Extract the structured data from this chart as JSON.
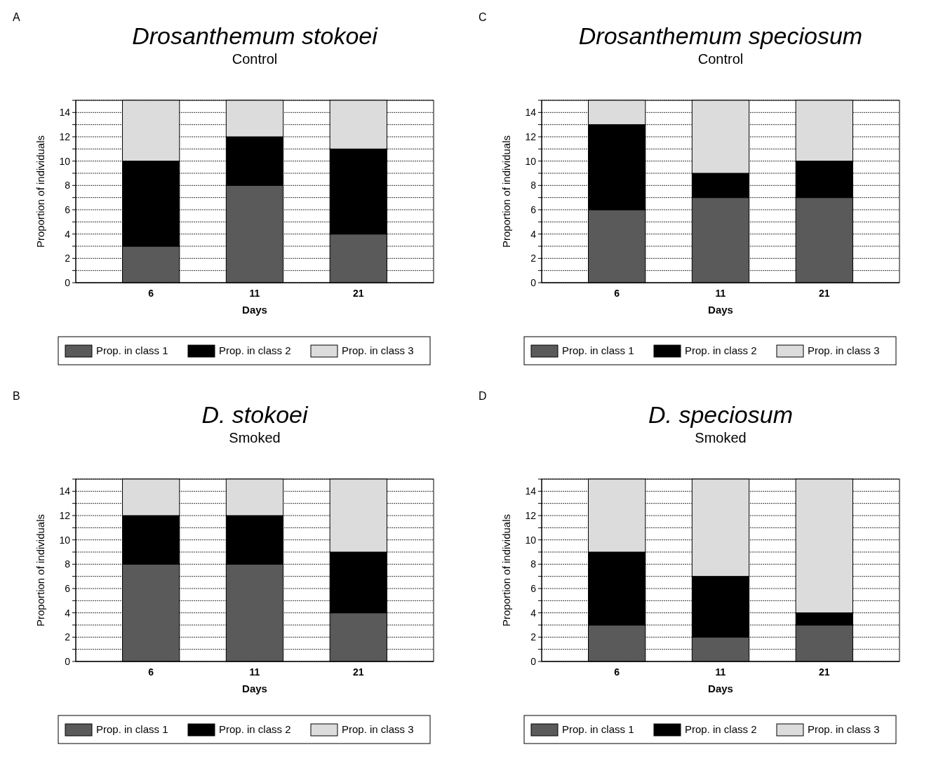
{
  "chart_data": [
    {
      "type": "bar",
      "title": "Drosanthemum stokoei",
      "subtitle": "Control",
      "xlabel": "Days",
      "ylabel": "Proportion of individuals",
      "annotations": [
        "A"
      ],
      "categories": [
        "6",
        "11",
        "21"
      ],
      "stacked": true,
      "ylim": [
        0,
        15
      ],
      "yticks": [
        0,
        {
          "value": 1,
          "label": null
        },
        2,
        {
          "value": 3,
          "label": null
        },
        4,
        {
          "value": 5,
          "label": null
        },
        6,
        {
          "value": 7,
          "label": null
        },
        8,
        {
          "value": 9,
          "label": null
        },
        10,
        {
          "value": 11,
          "label": null
        },
        12,
        {
          "value": 13,
          "label": null
        },
        14,
        {
          "value": 15,
          "label": null
        }
      ],
      "grid": "y",
      "legend": "bottom",
      "series": [
        {
          "name": "Prop. in class 1",
          "color": "#5a5a5a",
          "values": [
            3,
            8,
            4
          ]
        },
        {
          "name": "Prop. in class 2",
          "color": "#000000",
          "values": [
            7,
            4,
            7
          ]
        },
        {
          "name": "Prop. in class 3",
          "color": "#dcdcdc",
          "values": [
            5,
            3,
            4
          ]
        }
      ]
    },
    {
      "type": "bar",
      "title": "Drosanthemum speciosum",
      "subtitle": "Control",
      "xlabel": "Days",
      "ylabel": "Proportion of individuals",
      "annotations": [
        "C"
      ],
      "categories": [
        "6",
        "11",
        "21"
      ],
      "stacked": true,
      "ylim": [
        0,
        15
      ],
      "yticks": [
        0,
        {
          "value": 1,
          "label": null
        },
        2,
        {
          "value": 3,
          "label": null
        },
        4,
        {
          "value": 5,
          "label": null
        },
        6,
        {
          "value": 7,
          "label": null
        },
        8,
        {
          "value": 9,
          "label": null
        },
        10,
        {
          "value": 11,
          "label": null
        },
        12,
        {
          "value": 13,
          "label": null
        },
        14,
        {
          "value": 15,
          "label": null
        }
      ],
      "grid": "y",
      "legend": "bottom",
      "series": [
        {
          "name": "Prop. in class 1",
          "color": "#5a5a5a",
          "values": [
            6,
            7,
            7
          ]
        },
        {
          "name": "Prop. in class 2",
          "color": "#000000",
          "values": [
            7,
            2,
            3
          ]
        },
        {
          "name": "Prop. in class 3",
          "color": "#dcdcdc",
          "values": [
            2,
            6,
            5
          ]
        }
      ]
    },
    {
      "type": "bar",
      "title": "D. stokoei",
      "subtitle": "Smoked",
      "xlabel": "Days",
      "ylabel": "Proportion of individuals",
      "annotations": [
        "B"
      ],
      "categories": [
        "6",
        "11",
        "21"
      ],
      "stacked": true,
      "ylim": [
        0,
        15
      ],
      "yticks": [
        0,
        {
          "value": 1,
          "label": null
        },
        2,
        {
          "value": 3,
          "label": null
        },
        4,
        {
          "value": 5,
          "label": null
        },
        6,
        {
          "value": 7,
          "label": null
        },
        8,
        {
          "value": 9,
          "label": null
        },
        10,
        {
          "value": 11,
          "label": null
        },
        12,
        {
          "value": 13,
          "label": null
        },
        14,
        {
          "value": 15,
          "label": null
        }
      ],
      "grid": "y",
      "legend": "bottom",
      "series": [
        {
          "name": "Prop. in class 1",
          "color": "#5a5a5a",
          "values": [
            8,
            8,
            4
          ]
        },
        {
          "name": "Prop. in class 2",
          "color": "#000000",
          "values": [
            4,
            4,
            5
          ]
        },
        {
          "name": "Prop. in class 3",
          "color": "#dcdcdc",
          "values": [
            3,
            3,
            6
          ]
        }
      ]
    },
    {
      "type": "bar",
      "title": "D. speciosum",
      "subtitle": "Smoked",
      "xlabel": "Days",
      "ylabel": "Proportion of individuals",
      "annotations": [
        "D"
      ],
      "categories": [
        "6",
        "11",
        "21"
      ],
      "stacked": true,
      "ylim": [
        0,
        15
      ],
      "yticks": [
        0,
        {
          "value": 1,
          "label": null
        },
        2,
        {
          "value": 3,
          "label": null
        },
        4,
        {
          "value": 5,
          "label": null
        },
        6,
        {
          "value": 7,
          "label": null
        },
        8,
        {
          "value": 9,
          "label": null
        },
        10,
        {
          "value": 11,
          "label": null
        },
        12,
        {
          "value": 13,
          "label": null
        },
        14,
        {
          "value": 15,
          "label": null
        }
      ],
      "grid": "y",
      "legend": "bottom",
      "series": [
        {
          "name": "Prop. in class 1",
          "color": "#5a5a5a",
          "values": [
            3,
            2,
            3
          ]
        },
        {
          "name": "Prop. in class 2",
          "color": "#000000",
          "values": [
            6,
            5,
            1
          ]
        },
        {
          "name": "Prop. in class 3",
          "color": "#dcdcdc",
          "values": [
            6,
            8,
            11
          ]
        }
      ]
    }
  ]
}
